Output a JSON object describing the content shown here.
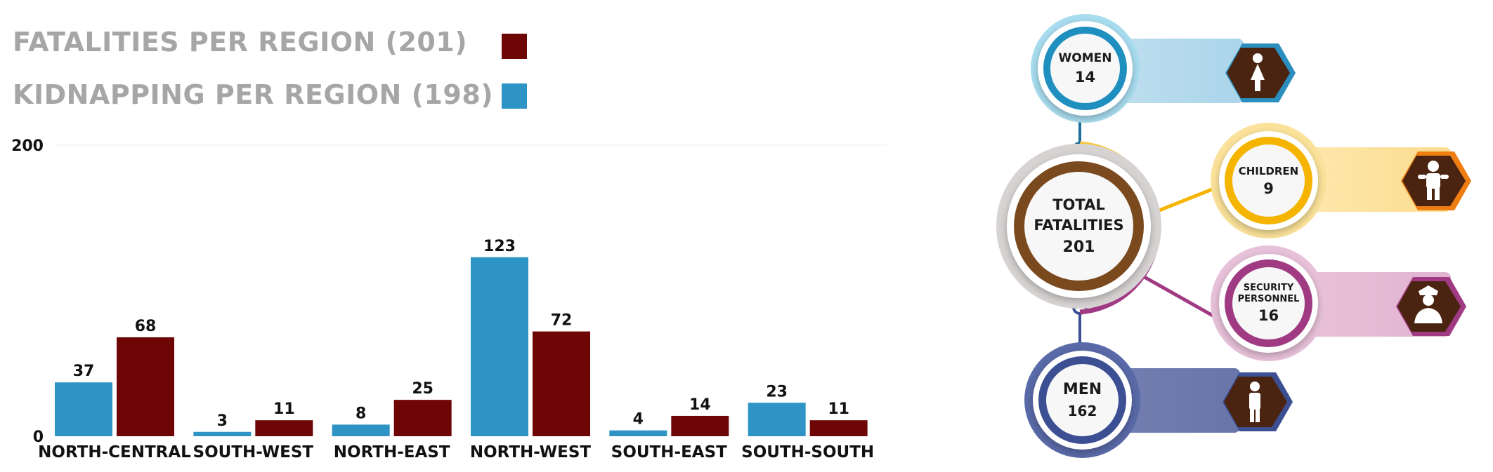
{
  "legend": [
    {
      "label": "FATALITIES PER REGION (201)",
      "color": "#6e0606"
    },
    {
      "label": "KIDNAPPING PER REGION (198)",
      "color": "#2e93c5"
    }
  ],
  "chart_data": {
    "type": "bar",
    "categories": [
      "NORTH-CENTRAL",
      "SOUTH-WEST",
      "NORTH-EAST",
      "NORTH-WEST",
      "SOUTH-EAST",
      "SOUTH-SOUTH"
    ],
    "series": [
      {
        "name": "KIDNAPPING PER REGION (198)",
        "color": "#2e93c5",
        "values": [
          37,
          3,
          8,
          123,
          4,
          23
        ]
      },
      {
        "name": "FATALITIES PER REGION (201)",
        "color": "#6e0606",
        "values": [
          68,
          11,
          25,
          72,
          14,
          11
        ]
      }
    ],
    "yticks": [
      "200",
      "0"
    ],
    "ylim": [
      0,
      200
    ],
    "grid": false,
    "legend_position": "top-left"
  },
  "infographic": {
    "total": {
      "label_line1": "TOTAL",
      "label_line2": "FATALITIES",
      "value": "201",
      "color": "#7a4a1e"
    },
    "women": {
      "label": "WOMEN",
      "value": "14",
      "color": "#1f8fc0",
      "icon": "woman-icon"
    },
    "children": {
      "label": "CHILDREN",
      "value": "9",
      "color": "#f5b400",
      "icon": "child-icon"
    },
    "security": {
      "label_line1": "SECURITY",
      "label_line2": "PERSONNEL",
      "value": "16",
      "color": "#a03a83",
      "icon": "officer-icon"
    },
    "men": {
      "label": "MEN",
      "value": "162",
      "color": "#3c4f93",
      "icon": "man-icon"
    }
  }
}
